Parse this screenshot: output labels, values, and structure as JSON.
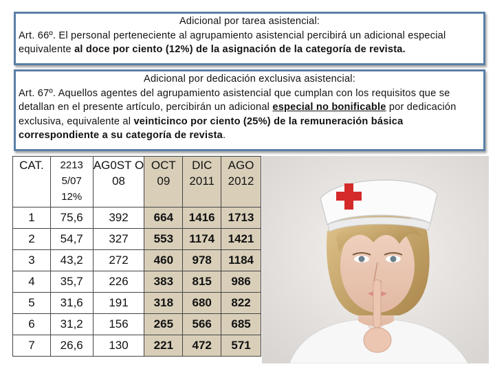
{
  "box1": {
    "title": "Adicional por tarea asistencial:",
    "text_a": "Art. 66º. El personal perteneciente al agrupamiento asistencial percibirá un adicional especial equivalente ",
    "text_b": "al doce por ciento (12%) de la asignación de la categoría de revista."
  },
  "box2": {
    "title": "Adicional por dedicación exclusiva asistencial:",
    "text_a": "Art. 67º. Aquellos agentes del agrupamiento asistencial que cumplan con los requisitos que se detallan en el presente artículo, percibirán un adicional ",
    "text_b": "especial no bonificable",
    "text_c": " por dedicación exclusiva, equivalente al ",
    "text_d": "veinticinco por ciento (25%) de la remuneración básica correspondiente a su categoría de revista",
    "text_e": "."
  },
  "table": {
    "headers": [
      "CAT.",
      "2213 5/07 12%",
      "AG0ST O 08",
      "OCT 09",
      "DIC 2011",
      "AGO 2012"
    ],
    "rows": [
      [
        "1",
        "75,6",
        "392",
        "664",
        "1416",
        "1713"
      ],
      [
        "2",
        "54,7",
        "327",
        "553",
        "1174",
        "1421"
      ],
      [
        "3",
        "43,2",
        "272",
        "460",
        "978",
        "1184"
      ],
      [
        "4",
        "35,7",
        "226",
        "383",
        "815",
        "986"
      ],
      [
        "5",
        "31,6",
        "191",
        "318",
        "680",
        "822"
      ],
      [
        "6",
        "31,2",
        "156",
        "265",
        "566",
        "685"
      ],
      [
        "7",
        "26,6",
        "130",
        "221",
        "472",
        "571"
      ]
    ]
  },
  "photo": {
    "icon": "nurse-portrait",
    "cross_color": "#d42a2a",
    "hair_color": "#c9a96a"
  }
}
